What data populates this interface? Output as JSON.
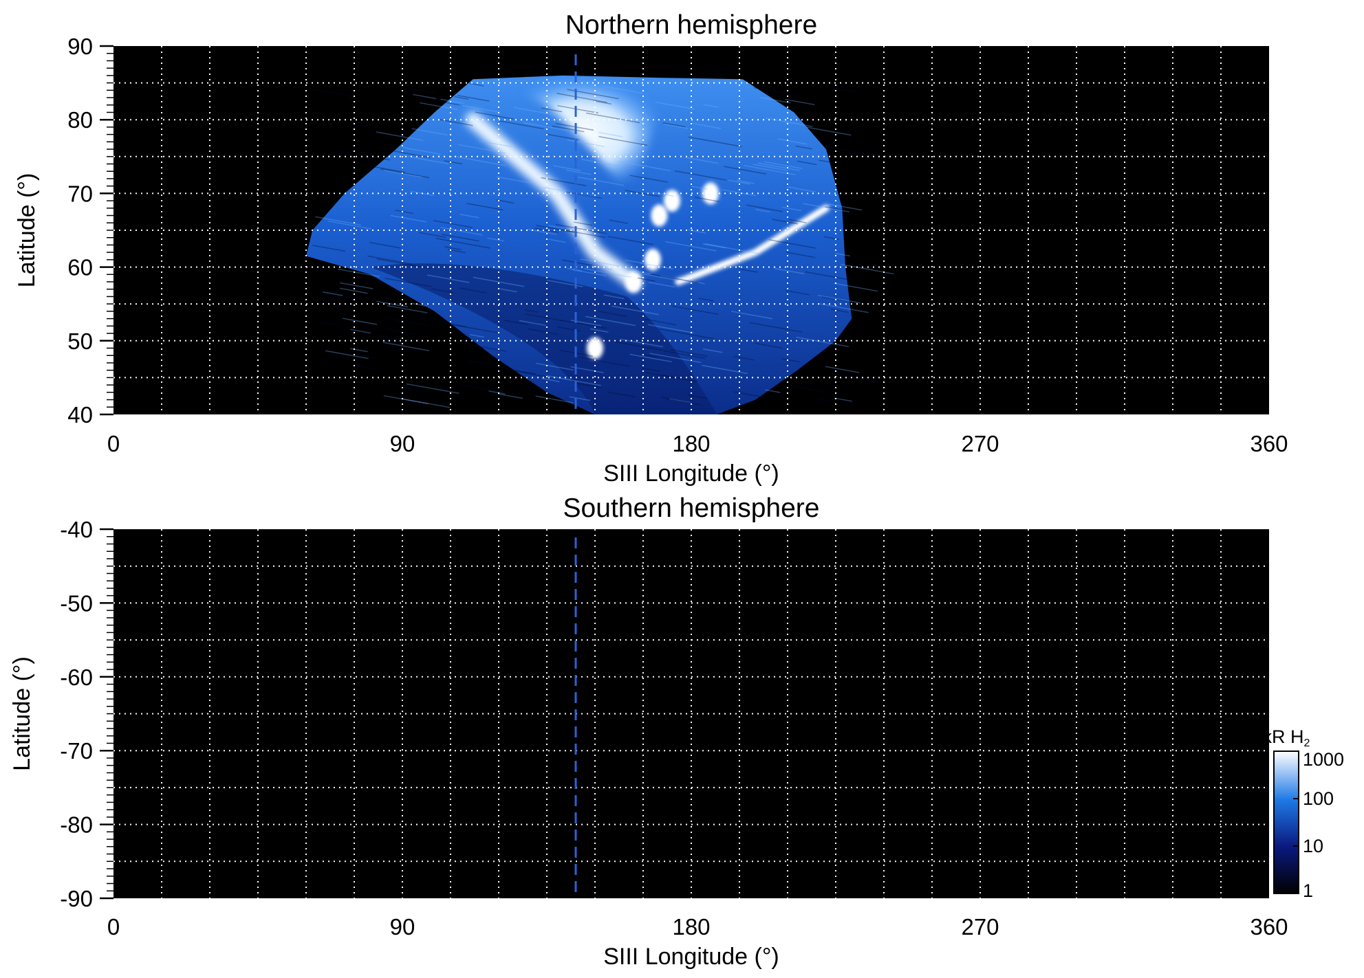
{
  "chart_data": [
    {
      "type": "heatmap",
      "title": "Northern hemisphere",
      "xlabel": "SIII Longitude (°)",
      "ylabel": "Latitude (°)",
      "xlim": [
        0,
        360
      ],
      "ylim": [
        40,
        90
      ],
      "xticks": [
        "0",
        "90",
        "180",
        "270",
        "360"
      ],
      "yticks": [
        "40",
        "50",
        "60",
        "70",
        "80",
        "90"
      ],
      "grid": true,
      "reference_line_longitude": 144,
      "emission_region": {
        "longitude_range": [
          60,
          228
        ],
        "latitude_range": [
          40,
          86
        ],
        "main_oval_arc": [
          [
            112,
            80
          ],
          [
            138,
            70
          ],
          [
            150,
            62
          ],
          [
            162,
            58
          ]
        ],
        "bright_arc": [
          [
            176,
            58
          ],
          [
            200,
            62
          ],
          [
            222,
            68
          ]
        ],
        "spots": [
          [
            150,
            49
          ],
          [
            162,
            58
          ],
          [
            168,
            61
          ],
          [
            170,
            67
          ],
          [
            174,
            69
          ],
          [
            186,
            70
          ]
        ]
      }
    },
    {
      "type": "heatmap",
      "title": "Southern hemisphere",
      "xlabel": "SIII Longitude (°)",
      "ylabel": "Latitude (°)",
      "xlim": [
        0,
        360
      ],
      "ylim": [
        -90,
        -40
      ],
      "xticks": [
        "0",
        "90",
        "180",
        "270",
        "360"
      ],
      "yticks": [
        "-40",
        "-50",
        "-60",
        "-70",
        "-80",
        "-90"
      ],
      "grid": true,
      "reference_line_longitude": 144,
      "emission_region": null
    }
  ],
  "colorbar": {
    "label": "kR H",
    "label_subscript": "2",
    "scale": "log",
    "range": [
      1,
      1000
    ],
    "ticks": [
      "1",
      "10",
      "100",
      "1000"
    ],
    "colors": [
      "#000000",
      "#0a1a80",
      "#1f7ae6",
      "#ffffff"
    ]
  },
  "colors": {
    "background": "#000000",
    "grid": "#ffffff",
    "reference_line": "#2a62d6"
  }
}
